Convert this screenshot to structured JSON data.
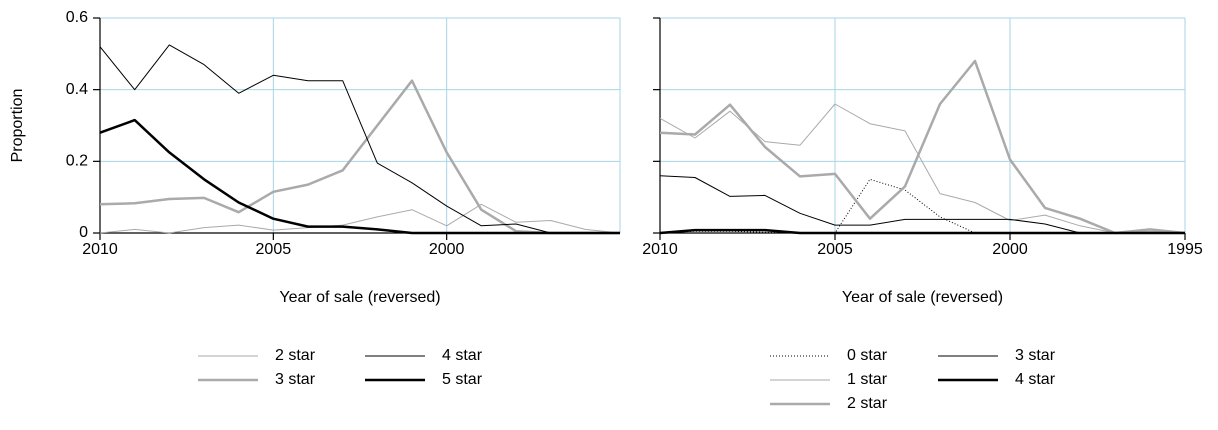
{
  "chart_data": [
    {
      "type": "line",
      "ylabel": "Proportion",
      "xlabel": "Year of sale (reversed)",
      "x": [
        2010,
        2009,
        2008,
        2007,
        2006,
        2005,
        2004,
        2003,
        2002,
        2001,
        2000,
        1999,
        1998,
        1997,
        1996,
        1995
      ],
      "xlim": [
        2010,
        1995
      ],
      "xticks": [
        2010,
        2005,
        2000
      ],
      "ylim": [
        0,
        0.6
      ],
      "yticks": [
        0,
        0.2,
        0.4,
        0.6
      ],
      "show_ytick_labels": true,
      "grid": true,
      "legend_rows": 2,
      "series": [
        {
          "name": "2 star",
          "color": "#aaaaaa",
          "width": 1,
          "dash": "none",
          "values": [
            0,
            0.01,
            0,
            0.015,
            0.022,
            0.008,
            0.015,
            0.022,
            0.045,
            0.065,
            0.02,
            0.08,
            0.03,
            0.035,
            0.01,
            0
          ]
        },
        {
          "name": "3 star",
          "color": "#aaaaaa",
          "width": 2.5,
          "dash": "none",
          "values": [
            0.08,
            0.083,
            0.095,
            0.098,
            0.058,
            0.115,
            0.135,
            0.175,
            0.3,
            0.425,
            0.225,
            0.065,
            0.005,
            0,
            0,
            0
          ]
        },
        {
          "name": "4 star",
          "color": "#000000",
          "width": 1,
          "dash": "none",
          "values": [
            0.52,
            0.4,
            0.525,
            0.47,
            0.39,
            0.44,
            0.425,
            0.425,
            0.195,
            0.14,
            0.075,
            0.02,
            0.025,
            0,
            0,
            0
          ]
        },
        {
          "name": "5 star",
          "color": "#000000",
          "width": 2.5,
          "dash": "none",
          "values": [
            0.28,
            0.315,
            0.225,
            0.15,
            0.085,
            0.04,
            0.018,
            0.018,
            0.01,
            0,
            0,
            0,
            0,
            0,
            0,
            0
          ]
        }
      ]
    },
    {
      "type": "line",
      "xlabel": "Year of sale (reversed)",
      "x": [
        2010,
        2009,
        2008,
        2007,
        2006,
        2005,
        2004,
        2003,
        2002,
        2001,
        2000,
        1999,
        1998,
        1997,
        1996,
        1995
      ],
      "xlim": [
        2010,
        1995
      ],
      "xticks": [
        2010,
        2005,
        2000,
        1995
      ],
      "ylim": [
        0,
        0.6
      ],
      "yticks": [
        0,
        0.2,
        0.4,
        0.6
      ],
      "show_ytick_labels": false,
      "grid": true,
      "legend_rows": 3,
      "series": [
        {
          "name": "0 star",
          "color": "#000000",
          "width": 1,
          "dash": "1,2",
          "values": [
            0,
            0.005,
            0.005,
            0.002,
            0,
            0,
            0.15,
            0.12,
            0.045,
            0,
            0,
            0,
            0,
            0,
            0,
            0
          ]
        },
        {
          "name": "1 star",
          "color": "#aaaaaa",
          "width": 1,
          "dash": "none",
          "values": [
            0.32,
            0.265,
            0.34,
            0.255,
            0.245,
            0.36,
            0.305,
            0.285,
            0.11,
            0.085,
            0.035,
            0.05,
            0.02,
            0,
            0.005,
            0
          ]
        },
        {
          "name": "2 star",
          "color": "#aaaaaa",
          "width": 2.5,
          "dash": "none",
          "values": [
            0.28,
            0.275,
            0.358,
            0.24,
            0.158,
            0.165,
            0.04,
            0.13,
            0.36,
            0.48,
            0.205,
            0.07,
            0.04,
            0,
            0.01,
            0
          ]
        },
        {
          "name": "3 star",
          "color": "#000000",
          "width": 1,
          "dash": "none",
          "values": [
            0.16,
            0.155,
            0.102,
            0.105,
            0.055,
            0.022,
            0.022,
            0.038,
            0.038,
            0.038,
            0.038,
            0.025,
            0,
            0,
            0,
            0
          ]
        },
        {
          "name": "4 star",
          "color": "#000000",
          "width": 2.5,
          "dash": "none",
          "values": [
            0,
            0.008,
            0.008,
            0.008,
            0,
            0,
            0,
            0,
            0,
            0,
            0,
            0,
            0,
            0,
            0,
            0
          ]
        }
      ]
    }
  ]
}
